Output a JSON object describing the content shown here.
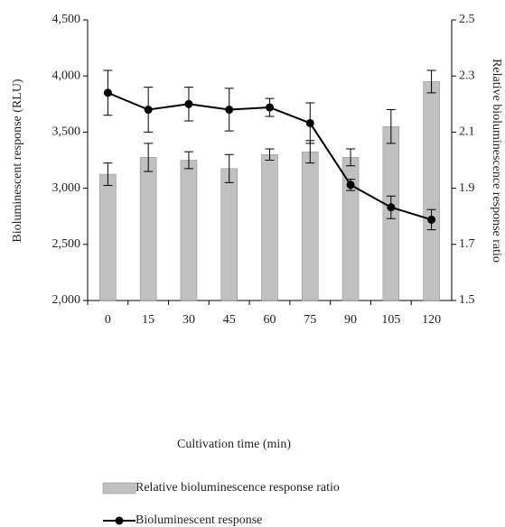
{
  "chart_data": {
    "type": "bar-line",
    "xlabel": "Cultivation time (min)",
    "ylabel": "Bioluminescent response (RLU)",
    "y2label": "Relative bioluminescence response ratio",
    "categories": [
      "0",
      "15",
      "30",
      "45",
      "60",
      "75",
      "90",
      "105",
      "120"
    ],
    "ylim": [
      2000,
      4500
    ],
    "yticks": [
      {
        "value": 2000,
        "label": "2,000"
      },
      {
        "value": 2500,
        "label": "2,500"
      },
      {
        "value": 3000,
        "label": "3,000"
      },
      {
        "value": 3500,
        "label": "3,500"
      },
      {
        "value": 4000,
        "label": "4,000"
      },
      {
        "value": 4500,
        "label": "4,500"
      }
    ],
    "y2lim": [
      1.5,
      2.5
    ],
    "y2ticks": [
      1.5,
      1.7,
      1.9,
      2.1,
      2.3,
      2.5
    ],
    "series": [
      {
        "name": "Relative bioluminescence response ratio",
        "type": "bar",
        "axis": "y2",
        "color": "#c0c0c0",
        "values": [
          1.95,
          2.01,
          2.0,
          1.97,
          2.02,
          2.03,
          2.01,
          2.12,
          2.28
        ],
        "errors": [
          0.04,
          0.05,
          0.03,
          0.05,
          0.02,
          0.04,
          0.03,
          0.06,
          0.04
        ]
      },
      {
        "name": "Bioluminescent response",
        "type": "line",
        "color": "#000000",
        "values": [
          3850,
          3700,
          3750,
          3700,
          3720,
          3580,
          3030,
          2830,
          2720
        ],
        "errors": [
          200,
          200,
          150,
          190,
          80,
          180,
          50,
          100,
          90
        ]
      }
    ]
  }
}
